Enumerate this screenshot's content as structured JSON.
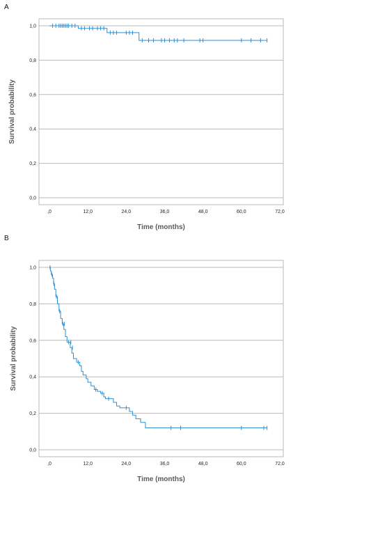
{
  "chart_data": [
    {
      "type": "line",
      "panel_label": "A",
      "xlabel": "Time (months)",
      "ylabel": "Survival probability",
      "x_ticks": [
        ",0",
        "12,0",
        "24,0",
        "36,0",
        "48,0",
        "60,0",
        "72,0"
      ],
      "y_ticks": [
        "0,0",
        "0,2",
        "0,4",
        "0,6",
        "0,8",
        "1,0"
      ],
      "xlim": [
        0,
        72
      ],
      "ylim": [
        0,
        1
      ],
      "grid": true,
      "series_color": "#2f8fd0",
      "steps": [
        {
          "x": 0,
          "y": 1.0
        },
        {
          "x": 9,
          "y": 0.985
        },
        {
          "x": 18,
          "y": 0.96
        },
        {
          "x": 28,
          "y": 0.915
        },
        {
          "x": 68,
          "y": 0.915
        }
      ],
      "censored": [
        {
          "x": 1,
          "y": 1.0
        },
        {
          "x": 2,
          "y": 1.0
        },
        {
          "x": 3,
          "y": 1.0
        },
        {
          "x": 3.5,
          "y": 1.0
        },
        {
          "x": 4,
          "y": 1.0
        },
        {
          "x": 4.5,
          "y": 1.0
        },
        {
          "x": 5,
          "y": 1.0
        },
        {
          "x": 5.5,
          "y": 1.0
        },
        {
          "x": 6,
          "y": 1.0
        },
        {
          "x": 7,
          "y": 1.0
        },
        {
          "x": 8,
          "y": 1.0
        },
        {
          "x": 10,
          "y": 0.985
        },
        {
          "x": 11,
          "y": 0.985
        },
        {
          "x": 12.5,
          "y": 0.985
        },
        {
          "x": 13.5,
          "y": 0.985
        },
        {
          "x": 15,
          "y": 0.985
        },
        {
          "x": 16,
          "y": 0.985
        },
        {
          "x": 17,
          "y": 0.985
        },
        {
          "x": 19,
          "y": 0.96
        },
        {
          "x": 20,
          "y": 0.96
        },
        {
          "x": 21,
          "y": 0.96
        },
        {
          "x": 24,
          "y": 0.96
        },
        {
          "x": 25,
          "y": 0.96
        },
        {
          "x": 26,
          "y": 0.96
        },
        {
          "x": 29,
          "y": 0.915
        },
        {
          "x": 31,
          "y": 0.915
        },
        {
          "x": 32.5,
          "y": 0.915
        },
        {
          "x": 35,
          "y": 0.915
        },
        {
          "x": 36,
          "y": 0.915
        },
        {
          "x": 37.5,
          "y": 0.915
        },
        {
          "x": 39,
          "y": 0.915
        },
        {
          "x": 40,
          "y": 0.915
        },
        {
          "x": 42,
          "y": 0.915
        },
        {
          "x": 47,
          "y": 0.915
        },
        {
          "x": 48,
          "y": 0.915
        },
        {
          "x": 60,
          "y": 0.915
        },
        {
          "x": 63,
          "y": 0.915
        },
        {
          "x": 66,
          "y": 0.915
        },
        {
          "x": 68,
          "y": 0.915
        }
      ]
    },
    {
      "type": "line",
      "panel_label": "B",
      "xlabel": "Time (months)",
      "ylabel": "Survival probability",
      "x_ticks": [
        ",0",
        "12,0",
        "24,0",
        "36,0",
        "48,0",
        "60,0",
        "72,0"
      ],
      "y_ticks": [
        "0,0",
        "0,2",
        "0,4",
        "0,6",
        "0,8",
        "1,0"
      ],
      "xlim": [
        0,
        72
      ],
      "ylim": [
        0,
        1
      ],
      "grid": true,
      "series_color": "#2f8fd0",
      "steps": [
        {
          "x": 0,
          "y": 1.0
        },
        {
          "x": 0.3,
          "y": 0.98
        },
        {
          "x": 0.6,
          "y": 0.96
        },
        {
          "x": 1.0,
          "y": 0.94
        },
        {
          "x": 1.3,
          "y": 0.91
        },
        {
          "x": 1.6,
          "y": 0.88
        },
        {
          "x": 2.0,
          "y": 0.84
        },
        {
          "x": 2.5,
          "y": 0.8
        },
        {
          "x": 3.0,
          "y": 0.76
        },
        {
          "x": 3.5,
          "y": 0.72
        },
        {
          "x": 4.0,
          "y": 0.69
        },
        {
          "x": 4.5,
          "y": 0.66
        },
        {
          "x": 5.0,
          "y": 0.62
        },
        {
          "x": 5.5,
          "y": 0.59
        },
        {
          "x": 6.5,
          "y": 0.56
        },
        {
          "x": 7.0,
          "y": 0.53
        },
        {
          "x": 7.5,
          "y": 0.5
        },
        {
          "x": 8.5,
          "y": 0.48
        },
        {
          "x": 9.5,
          "y": 0.46
        },
        {
          "x": 10.0,
          "y": 0.43
        },
        {
          "x": 10.5,
          "y": 0.41
        },
        {
          "x": 11.5,
          "y": 0.39
        },
        {
          "x": 12.0,
          "y": 0.37
        },
        {
          "x": 13.0,
          "y": 0.35
        },
        {
          "x": 14.0,
          "y": 0.33
        },
        {
          "x": 15.0,
          "y": 0.32
        },
        {
          "x": 16.0,
          "y": 0.31
        },
        {
          "x": 17.0,
          "y": 0.29
        },
        {
          "x": 17.5,
          "y": 0.28
        },
        {
          "x": 20.0,
          "y": 0.26
        },
        {
          "x": 21.0,
          "y": 0.24
        },
        {
          "x": 22.0,
          "y": 0.23
        },
        {
          "x": 25.0,
          "y": 0.21
        },
        {
          "x": 26.0,
          "y": 0.19
        },
        {
          "x": 27.0,
          "y": 0.17
        },
        {
          "x": 28.5,
          "y": 0.15
        },
        {
          "x": 30.0,
          "y": 0.12
        },
        {
          "x": 68.0,
          "y": 0.12
        }
      ],
      "censored": [
        {
          "x": 0.2,
          "y": 1.0
        },
        {
          "x": 0.8,
          "y": 0.96
        },
        {
          "x": 1.4,
          "y": 0.91
        },
        {
          "x": 2.2,
          "y": 0.84
        },
        {
          "x": 3.2,
          "y": 0.76
        },
        {
          "x": 4.2,
          "y": 0.69
        },
        {
          "x": 4.7,
          "y": 0.69
        },
        {
          "x": 6.0,
          "y": 0.59
        },
        {
          "x": 6.7,
          "y": 0.59
        },
        {
          "x": 7.2,
          "y": 0.56
        },
        {
          "x": 9.0,
          "y": 0.48
        },
        {
          "x": 14.5,
          "y": 0.33
        },
        {
          "x": 16.5,
          "y": 0.31
        },
        {
          "x": 18.5,
          "y": 0.28
        },
        {
          "x": 24.0,
          "y": 0.23
        },
        {
          "x": 38.0,
          "y": 0.12
        },
        {
          "x": 41.0,
          "y": 0.12
        },
        {
          "x": 60.0,
          "y": 0.12
        },
        {
          "x": 67.0,
          "y": 0.12
        },
        {
          "x": 68.0,
          "y": 0.12
        }
      ]
    }
  ]
}
